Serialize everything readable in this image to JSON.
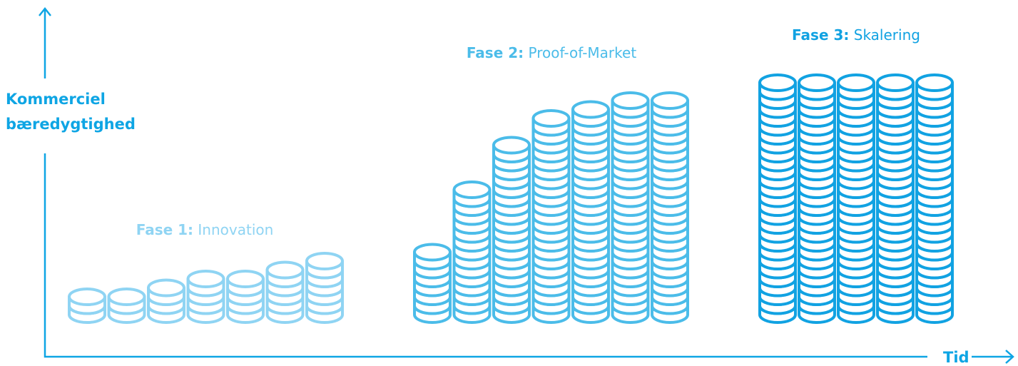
{
  "axes": {
    "y_label": [
      "Kommerciel",
      "bæredygtighed"
    ],
    "x_label": "Tid",
    "color": "#0ea5e4"
  },
  "phases": [
    {
      "prefix": "Fase 1:",
      "name": "Innovation",
      "color": "#8fd4f3",
      "stacks": [
        2,
        2,
        3,
        4,
        4,
        5,
        6
      ]
    },
    {
      "prefix": "Fase 2:",
      "name": "Proof-of-Market",
      "color": "#4bbce9",
      "stacks": [
        7,
        14,
        19,
        22,
        23,
        24,
        24
      ]
    },
    {
      "prefix": "Fase 3:",
      "name": "Skalering",
      "color": "#11a2e2",
      "stacks": [
        26,
        26,
        26,
        26,
        26
      ]
    }
  ]
}
